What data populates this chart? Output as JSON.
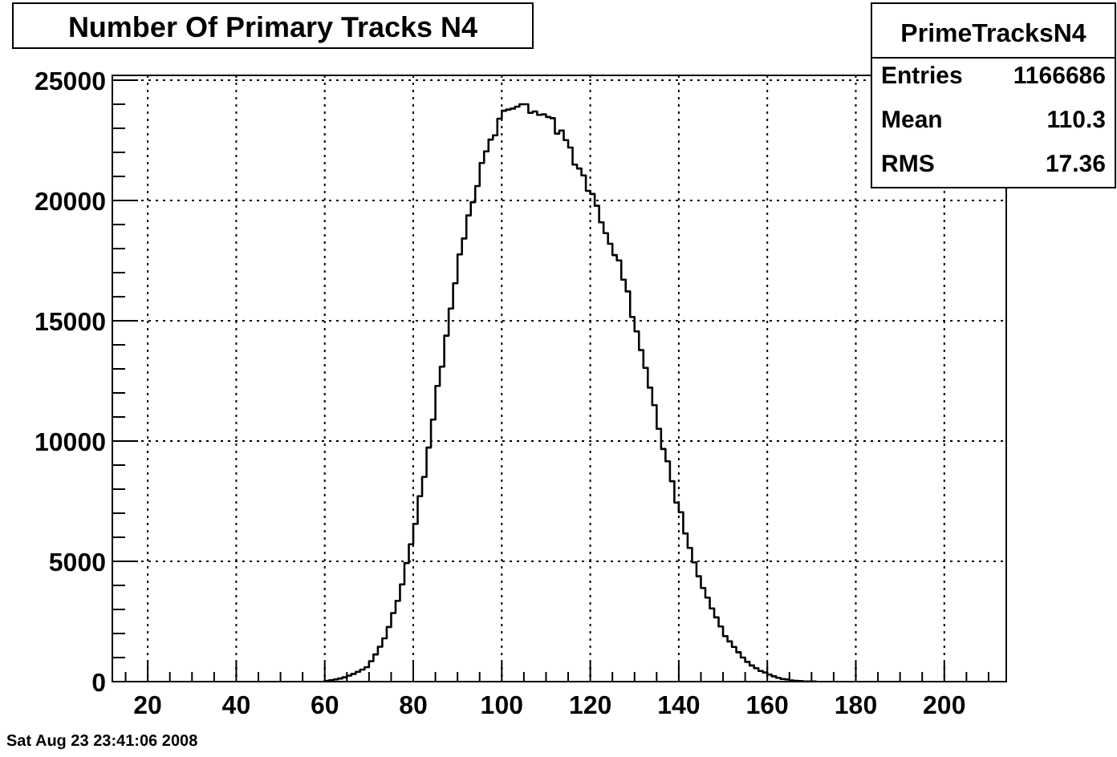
{
  "chart_data": {
    "type": "histogram",
    "title": "Number Of Primary Tracks N4",
    "bins": [
      60,
      61,
      62,
      63,
      64,
      65,
      66,
      67,
      68,
      69,
      70,
      71,
      72,
      73,
      74,
      75,
      76,
      77,
      78,
      79,
      80,
      81,
      82,
      83,
      84,
      85,
      86,
      87,
      88,
      89,
      90,
      91,
      92,
      93,
      94,
      95,
      96,
      97,
      98,
      99,
      100,
      101,
      102,
      103,
      104,
      105,
      106,
      107,
      108,
      109,
      110,
      111,
      112,
      113,
      114,
      115,
      116,
      117,
      118,
      119,
      120,
      121,
      122,
      123,
      124,
      125,
      126,
      127,
      128,
      129,
      130,
      131,
      132,
      133,
      134,
      135,
      136,
      137,
      138,
      139,
      140,
      141,
      142,
      143,
      144,
      145,
      146,
      147,
      148,
      149,
      150,
      151,
      152,
      153,
      154,
      155,
      156,
      157,
      158,
      159,
      160,
      161,
      162,
      163,
      164,
      165,
      166,
      167,
      168,
      169,
      170,
      171
    ],
    "values": [
      30,
      60,
      90,
      130,
      180,
      250,
      320,
      410,
      500,
      600,
      850,
      1130,
      1450,
      1800,
      2270,
      2850,
      3360,
      4040,
      4930,
      5710,
      6560,
      7710,
      8510,
      9730,
      10890,
      12290,
      13090,
      14380,
      15510,
      16560,
      17760,
      18420,
      19380,
      19930,
      20600,
      21560,
      22040,
      22530,
      22710,
      23400,
      23730,
      23780,
      23820,
      23900,
      24000,
      24000,
      23640,
      23700,
      23560,
      23580,
      23470,
      23420,
      22780,
      22910,
      22510,
      22200,
      21490,
      21330,
      21040,
      20400,
      20270,
      19780,
      19090,
      18640,
      18200,
      17730,
      17510,
      16710,
      16220,
      15160,
      14560,
      13780,
      13040,
      12220,
      11490,
      10510,
      9670,
      9160,
      8330,
      7440,
      7040,
      6160,
      5560,
      4960,
      4380,
      3890,
      3490,
      3040,
      2670,
      2290,
      1890,
      1670,
      1440,
      1220,
      1000,
      820,
      670,
      560,
      440,
      380,
      290,
      220,
      160,
      110,
      90,
      50,
      30,
      20,
      10,
      10,
      10
    ],
    "color": "#000000",
    "xlim": [
      12,
      214
    ],
    "xticks": [
      {
        "value": 15,
        "label": null
      },
      20,
      {
        "value": 25,
        "label": null
      },
      {
        "value": 30,
        "label": null
      },
      {
        "value": 35,
        "label": null
      },
      40,
      {
        "value": 45,
        "label": null
      },
      {
        "value": 50,
        "label": null
      },
      {
        "value": 55,
        "label": null
      },
      60,
      {
        "value": 65,
        "label": null
      },
      {
        "value": 70,
        "label": null
      },
      {
        "value": 75,
        "label": null
      },
      80,
      {
        "value": 85,
        "label": null
      },
      {
        "value": 90,
        "label": null
      },
      {
        "value": 95,
        "label": null
      },
      100,
      {
        "value": 105,
        "label": null
      },
      {
        "value": 110,
        "label": null
      },
      {
        "value": 115,
        "label": null
      },
      120,
      {
        "value": 125,
        "label": null
      },
      {
        "value": 130,
        "label": null
      },
      {
        "value": 135,
        "label": null
      },
      140,
      {
        "value": 145,
        "label": null
      },
      {
        "value": 150,
        "label": null
      },
      {
        "value": 155,
        "label": null
      },
      160,
      {
        "value": 165,
        "label": null
      },
      {
        "value": 170,
        "label": null
      },
      {
        "value": 175,
        "label": null
      },
      180,
      {
        "value": 185,
        "label": null
      },
      {
        "value": 190,
        "label": null
      },
      {
        "value": 195,
        "label": null
      },
      200,
      {
        "value": 205,
        "label": null
      },
      {
        "value": 210,
        "label": null
      }
    ],
    "ylim": [
      0,
      25200
    ],
    "yticks": [
      0,
      {
        "value": 1000,
        "label": null
      },
      {
        "value": 2000,
        "label": null
      },
      {
        "value": 3000,
        "label": null
      },
      {
        "value": 4000,
        "label": null
      },
      5000,
      {
        "value": 6000,
        "label": null
      },
      {
        "value": 7000,
        "label": null
      },
      {
        "value": 8000,
        "label": null
      },
      {
        "value": 9000,
        "label": null
      },
      10000,
      {
        "value": 11000,
        "label": null
      },
      {
        "value": 12000,
        "label": null
      },
      {
        "value": 13000,
        "label": null
      },
      {
        "value": 14000,
        "label": null
      },
      15000,
      {
        "value": 16000,
        "label": null
      },
      {
        "value": 17000,
        "label": null
      },
      {
        "value": 18000,
        "label": null
      },
      {
        "value": 19000,
        "label": null
      },
      20000,
      {
        "value": 21000,
        "label": null
      },
      {
        "value": 22000,
        "label": null
      },
      {
        "value": 23000,
        "label": null
      },
      {
        "value": 24000,
        "label": null
      },
      25000
    ],
    "grid": true,
    "annotations": [
      "PrimeTracksN4",
      "Entries 1166686",
      "Mean 110.3",
      "RMS 17.36",
      "Sat Aug 23 23:41:06 2008"
    ]
  }
}
